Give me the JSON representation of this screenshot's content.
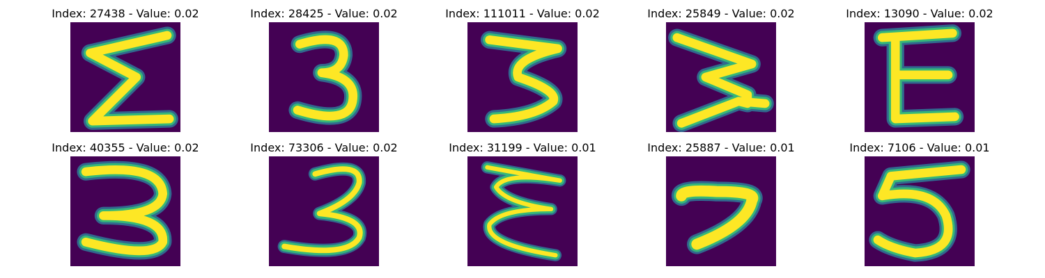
{
  "colors": {
    "background": "#440154",
    "stroke_inner": "#fde725",
    "stroke_mid": "#35b779",
    "stroke_outer": "#31688e"
  },
  "panels": [
    {
      "title": "Index: 27438 - Value: 0.02",
      "digit": "E-shape (sigma-like)"
    },
    {
      "title": "Index: 28425 - Value: 0.02",
      "digit": "3"
    },
    {
      "title": "Index: 111011 - Value: 0.02",
      "digit": "3"
    },
    {
      "title": "Index: 25849 - Value: 0.02",
      "digit": "3"
    },
    {
      "title": "Index: 13090 - Value: 0.02",
      "digit": "E"
    },
    {
      "title": "Index: 40355 - Value: 0.02",
      "digit": "3"
    },
    {
      "title": "Index: 73306 - Value: 0.02",
      "digit": "3"
    },
    {
      "title": "Index: 31199 - Value: 0.01",
      "digit": "E"
    },
    {
      "title": "Index: 25887 - Value: 0.01",
      "digit": "7"
    },
    {
      "title": "Index: 7106 - Value: 0.01",
      "digit": "5"
    }
  ]
}
